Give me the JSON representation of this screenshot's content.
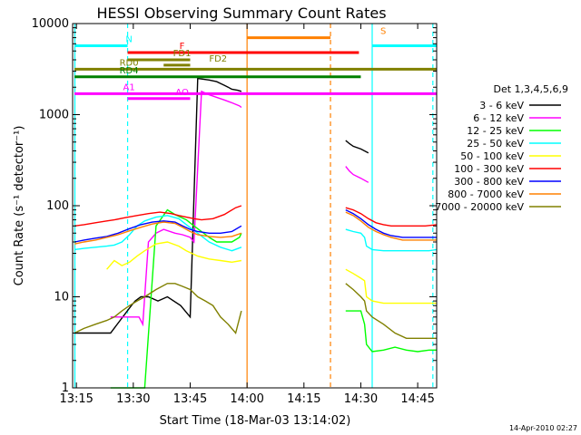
{
  "chart_data": {
    "type": "line",
    "title": "HESSI Observing Summary Count Rates",
    "xlabel": "Start Time (18-Mar-03 13:14:02)",
    "ylabel": "Count Rate (s⁻¹ detector⁻¹)",
    "footer": "14-Apr-2010 02:27",
    "x_unit": "minutes since 13:14:02 on 18-Mar-03",
    "xlim": [
      0,
      96
    ],
    "ylim": [
      1,
      10000
    ],
    "y_scale": "log",
    "x_ticks": [
      {
        "label": "13:15",
        "t": 1
      },
      {
        "label": "13:30",
        "t": 16
      },
      {
        "label": "13:45",
        "t": 31
      },
      {
        "label": "14:00",
        "t": 46
      },
      {
        "label": "14:15",
        "t": 61
      },
      {
        "label": "14:30",
        "t": 76
      },
      {
        "label": "14:45",
        "t": 91
      }
    ],
    "y_ticks": [
      {
        "label": "1",
        "v": 1
      },
      {
        "label": "10",
        "v": 10
      },
      {
        "label": "100",
        "v": 100
      },
      {
        "label": "1000",
        "v": 1000
      },
      {
        "label": "10000",
        "v": 10000
      }
    ],
    "legend_title": "Det 1,3,4,5,6,9",
    "legend_position": "right",
    "series": [
      {
        "name": "3 - 6 keV",
        "color": "#000000",
        "x": [
          0.5,
          5,
          9.5,
          10,
          15.5,
          16.5,
          18,
          20,
          22.5,
          25,
          28.5,
          31,
          33,
          36,
          38,
          39,
          40,
          41,
          42,
          43.5,
          44.5
        ],
        "y": [
          4,
          4,
          4,
          4,
          8,
          9,
          10,
          10,
          9,
          10,
          8,
          6,
          2500,
          2400,
          2300,
          2200,
          2100,
          2000,
          1900,
          1850,
          1800
        ]
      },
      {
        "name": "6 - 12 keV",
        "color": "#ff00ff",
        "x": [
          10,
          15.5,
          16.5,
          17.5,
          18.5,
          20,
          22,
          24,
          27,
          29,
          31,
          32,
          34,
          36,
          38,
          40,
          42,
          44,
          44.5
        ],
        "y": [
          6,
          6,
          6,
          6,
          5,
          40,
          50,
          55,
          50,
          48,
          45,
          40,
          1800,
          1650,
          1550,
          1450,
          1350,
          1250,
          1200
        ]
      },
      {
        "name": "12 - 25 keV",
        "color": "#00ff00",
        "x": [
          10,
          16,
          17,
          19,
          22,
          25,
          27,
          30,
          32,
          34,
          36,
          38,
          40,
          42,
          44,
          44.5
        ],
        "y": [
          1,
          1,
          1,
          1,
          60,
          90,
          80,
          70,
          60,
          52,
          45,
          40,
          40,
          40,
          45,
          50
        ]
      },
      {
        "name": "25 - 50 keV",
        "color": "#00ffff",
        "x": [
          0.5,
          3,
          6,
          9,
          11,
          13,
          15,
          17,
          19,
          22,
          25,
          28,
          30,
          33,
          36,
          39,
          42,
          44.5
        ],
        "y": [
          33,
          34,
          35,
          36,
          37,
          40,
          48,
          60,
          68,
          75,
          78,
          72,
          62,
          50,
          40,
          35,
          32,
          35
        ]
      },
      {
        "name": "50 - 100 keV",
        "color": "#ffff00",
        "x": [
          9,
          11,
          13,
          15,
          17,
          19,
          22,
          25,
          28,
          30,
          33,
          36,
          39,
          42,
          44.5
        ],
        "y": [
          20,
          25,
          22,
          24,
          28,
          32,
          38,
          40,
          36,
          32,
          28,
          26,
          25,
          24,
          25
        ]
      },
      {
        "name": "100 - 300 keV",
        "color": "#ff0000",
        "x": [
          0.5,
          3,
          6,
          9,
          11,
          14,
          17,
          20,
          23,
          26,
          28,
          30,
          32,
          34,
          37,
          40,
          43,
          44.5
        ],
        "y": [
          60,
          62,
          65,
          68,
          70,
          74,
          78,
          82,
          85,
          82,
          78,
          75,
          72,
          70,
          72,
          80,
          95,
          100
        ]
      },
      {
        "name": "300 - 800 keV",
        "color": "#0000ff",
        "x": [
          0.5,
          3,
          6,
          9,
          12,
          15,
          18,
          21,
          24,
          27,
          29,
          31,
          33,
          36,
          39,
          42,
          44.5
        ],
        "y": [
          40,
          42,
          44,
          46,
          50,
          56,
          62,
          66,
          68,
          66,
          60,
          55,
          52,
          50,
          50,
          52,
          60
        ]
      },
      {
        "name": "800 - 7000 keV",
        "color": "#ff8000",
        "x": [
          0.5,
          3,
          6,
          9,
          12,
          15,
          18,
          21,
          24,
          27,
          29,
          31,
          33,
          36,
          39,
          42,
          44.5
        ],
        "y": [
          38,
          40,
          42,
          45,
          48,
          53,
          58,
          63,
          66,
          64,
          58,
          52,
          48,
          46,
          45,
          46,
          50
        ]
      },
      {
        "name": "7000 - 20000 keV",
        "color": "#808000",
        "x": [
          0.5,
          3,
          6,
          9,
          11,
          13,
          15,
          17,
          19,
          22,
          25,
          27,
          29,
          31,
          33,
          35,
          37,
          39,
          41,
          43,
          44.5
        ],
        "y": [
          4,
          4.5,
          5,
          5.5,
          6,
          7,
          8,
          9,
          10,
          12,
          14,
          14,
          13,
          12,
          10,
          9,
          8,
          6,
          5,
          4,
          7
        ]
      }
    ],
    "series_after_gap": [
      {
        "x": [
          72,
          73,
          74,
          76,
          78
        ],
        "y": [
          520,
          480,
          450,
          420,
          380
        ]
      },
      {
        "x": [
          72,
          73,
          74,
          76,
          78
        ],
        "y": [
          270,
          240,
          220,
          200,
          180
        ]
      },
      {
        "x": [
          72,
          74,
          76,
          77,
          77.5,
          79,
          82,
          85,
          88,
          91,
          94,
          96
        ],
        "y": [
          7,
          7,
          7,
          5,
          3,
          2.5,
          2.6,
          2.8,
          2.6,
          2.5,
          2.6,
          2.6
        ]
      },
      {
        "x": [
          72,
          74,
          76,
          77,
          77.5,
          79,
          82,
          85,
          88,
          91,
          94,
          96
        ],
        "y": [
          55,
          52,
          50,
          45,
          36,
          33,
          32,
          32,
          32,
          32,
          32,
          33
        ]
      },
      {
        "x": [
          72,
          74,
          76,
          77,
          77.5,
          79,
          82,
          85,
          88,
          91,
          94,
          96
        ],
        "y": [
          20,
          18,
          16,
          15,
          10,
          9,
          8.5,
          8.5,
          8.5,
          8.5,
          8.5,
          8.5
        ]
      },
      {
        "x": [
          72,
          74,
          76,
          78,
          80,
          82,
          84,
          87,
          90,
          93,
          96
        ],
        "y": [
          95,
          90,
          82,
          72,
          65,
          62,
          60,
          60,
          60,
          60,
          62
        ]
      },
      {
        "x": [
          72,
          74,
          76,
          78,
          80,
          82,
          84,
          87,
          90,
          93,
          96
        ],
        "y": [
          90,
          82,
          72,
          62,
          55,
          50,
          47,
          45,
          45,
          45,
          45
        ]
      },
      {
        "x": [
          72,
          74,
          76,
          78,
          80,
          82,
          84,
          87,
          90,
          93,
          96
        ],
        "y": [
          85,
          78,
          68,
          58,
          52,
          48,
          45,
          42,
          42,
          42,
          42
        ]
      },
      {
        "x": [
          72,
          74,
          76,
          77,
          77.5,
          79,
          82,
          85,
          88,
          91,
          94,
          96
        ],
        "y": [
          14,
          12,
          10,
          9,
          7,
          6,
          5,
          4,
          3.5,
          3.5,
          3.5,
          3.5
        ]
      }
    ],
    "flag_bars": [
      {
        "label": "N",
        "color": "#00ffff",
        "segments": [
          [
            0.5,
            14.5
          ],
          [
            79,
            96
          ]
        ],
        "level": 5700
      },
      {
        "label": "S",
        "color": "#ff8000",
        "segments": [
          [
            46,
            68
          ]
        ],
        "level": 7000
      },
      {
        "label": "F",
        "color": "#ff0000",
        "segments": [
          [
            14.5,
            75.5
          ]
        ],
        "level": 4800
      },
      {
        "label": "FD1",
        "color": "#808000",
        "segments": [
          [
            14.5,
            31
          ]
        ],
        "level": 4000
      },
      {
        "label": "FD2",
        "color": "#808000",
        "segments": [
          [
            24,
            31
          ]
        ],
        "level": 3500
      },
      {
        "label": "RD0",
        "color": "#808000",
        "segments": [
          [
            0.5,
            96
          ]
        ],
        "level": 3150
      },
      {
        "label": "RD4",
        "color": "#008000",
        "segments": [
          [
            0.5,
            68
          ],
          [
            68,
            76
          ]
        ],
        "level": 2600
      },
      {
        "label": "A1",
        "color": "#ff00ff",
        "segments": [
          [
            0.5,
            96
          ]
        ],
        "level": 1700
      },
      {
        "label": "AO",
        "color": "#ff00ff",
        "segments": [
          [
            14.5,
            31
          ]
        ],
        "level": 1500
      }
    ],
    "vlines": [
      {
        "t": 14.5,
        "color": "#00ffff",
        "style": "dashed"
      },
      {
        "t": 46,
        "color": "#ff8000",
        "style": "solid"
      },
      {
        "t": 68,
        "color": "#ff8000",
        "style": "dashed"
      },
      {
        "t": 79,
        "color": "#00ffff",
        "style": "solid"
      },
      {
        "t": 95,
        "color": "#00ffff",
        "style": "dashed"
      },
      {
        "t": 0.6,
        "color": "#00ffff",
        "style": "solid"
      }
    ]
  }
}
